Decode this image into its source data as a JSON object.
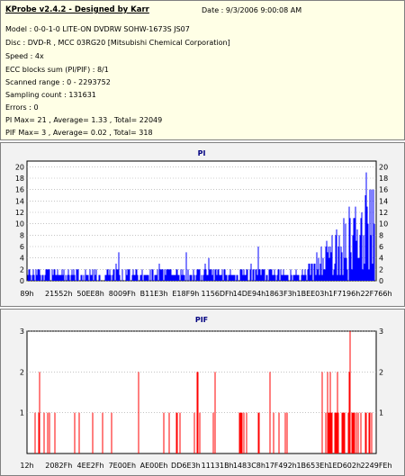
{
  "info": {
    "title": "KProbe v2.4.2 - Designed by Karr",
    "date": "Date : 9/3/2006 9:00:08 AM",
    "lines": [
      "Model : 0-0-1-0 LITE-ON DVDRW SOHW-1673S JS07",
      "Disc : DVD-R , MCC 03RG20  [Mitsubishi Chemical Corporation]",
      "Speed : 4x",
      "ECC blocks sum (PI/PIF) : 8/1",
      "Scanned range : 0 - 2293752",
      "Sampling count : 131631",
      "Errors : 0",
      "PI Max= 21 , Average= 1.33 , Total= 22049",
      "PIF Max= 3 , Average= 0.02 , Total= 318"
    ]
  },
  "chart_data": [
    {
      "type": "bar",
      "title": "PI",
      "color": "#0000ff",
      "ylim": [
        0,
        21
      ],
      "yticks": [
        0,
        2,
        4,
        6,
        8,
        10,
        12,
        14,
        16,
        18,
        20
      ],
      "xticks": [
        "89h",
        "21552h",
        "50EE8h",
        "8009Fh",
        "B11E3h",
        "E18F9h",
        "1156DFh",
        "14DE94h",
        "1863F3h",
        "1BEE03h",
        "1F7196h",
        "22F766h"
      ],
      "summary": {
        "max": 21,
        "average": 1.33,
        "total": 22049
      }
    },
    {
      "type": "bar",
      "title": "PIF",
      "color": "#ff0000",
      "ylim": [
        0,
        3
      ],
      "yticks": [
        1,
        2,
        3
      ],
      "xticks": [
        "12h",
        "2082Fh",
        "4EE2Fh",
        "7E00Eh",
        "AE00Eh",
        "DD6E3h",
        "11131Bh",
        "1483C8h",
        "17F492h",
        "1B653Eh",
        "1ED602h",
        "2249FEh"
      ],
      "summary": {
        "max": 3,
        "average": 0.02,
        "total": 318
      }
    }
  ]
}
